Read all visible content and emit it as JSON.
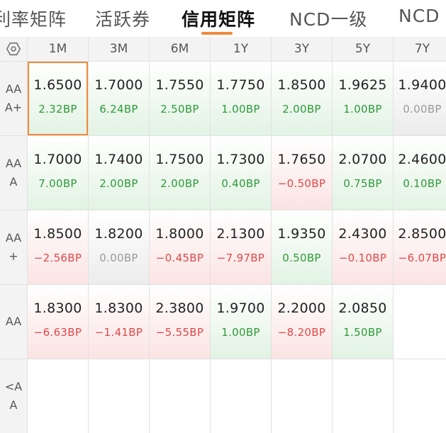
{
  "colors": {
    "accent": "#f08a3c",
    "up": "#2e9a3a",
    "down": "#e04848",
    "flat": "#9a9a9a"
  },
  "tabs": [
    {
      "label": "利率矩阵",
      "active": false
    },
    {
      "label": "活跃券",
      "active": false
    },
    {
      "label": "信用矩阵",
      "active": true
    },
    {
      "label": "NCD一级",
      "active": false
    },
    {
      "label": "NCD",
      "active": false
    }
  ],
  "corner_icon": "hexagon-settings-icon",
  "columns": [
    "1M",
    "3M",
    "6M",
    "1Y",
    "3Y",
    "5Y",
    "7Y"
  ],
  "rows": [
    {
      "label": "AAA+",
      "cells": [
        {
          "v": "1.6500",
          "c": "2.32BP",
          "t": "up",
          "selected": true
        },
        {
          "v": "1.7000",
          "c": "6.24BP",
          "t": "up"
        },
        {
          "v": "1.7550",
          "c": "2.50BP",
          "t": "up"
        },
        {
          "v": "1.7750",
          "c": "1.00BP",
          "t": "up"
        },
        {
          "v": "1.8500",
          "c": "2.00BP",
          "t": "up"
        },
        {
          "v": "1.9625",
          "c": "1.00BP",
          "t": "up"
        },
        {
          "v": "1.9400",
          "c": "0.00BP",
          "t": "flat"
        }
      ]
    },
    {
      "label": "AAA",
      "cells": [
        {
          "v": "1.7000",
          "c": "7.00BP",
          "t": "up"
        },
        {
          "v": "1.7400",
          "c": "2.00BP",
          "t": "up"
        },
        {
          "v": "1.7500",
          "c": "2.00BP",
          "t": "up"
        },
        {
          "v": "1.7300",
          "c": "0.40BP",
          "t": "up"
        },
        {
          "v": "1.7650",
          "c": "−0.50BP",
          "t": "down"
        },
        {
          "v": "2.0700",
          "c": "0.75BP",
          "t": "up"
        },
        {
          "v": "2.4600",
          "c": "0.10BP",
          "t": "up"
        }
      ]
    },
    {
      "label": "AA+",
      "cells": [
        {
          "v": "1.8500",
          "c": "−2.56BP",
          "t": "down"
        },
        {
          "v": "1.8200",
          "c": "0.00BP",
          "t": "flat"
        },
        {
          "v": "1.8000",
          "c": "−0.45BP",
          "t": "down"
        },
        {
          "v": "2.1300",
          "c": "−7.97BP",
          "t": "down"
        },
        {
          "v": "1.9350",
          "c": "0.50BP",
          "t": "up"
        },
        {
          "v": "2.4300",
          "c": "−0.10BP",
          "t": "down"
        },
        {
          "v": "2.8500",
          "c": "−6.07BP",
          "t": "down"
        }
      ]
    },
    {
      "label": "AA",
      "cells": [
        {
          "v": "1.8300",
          "c": "−6.63BP",
          "t": "down"
        },
        {
          "v": "1.8300",
          "c": "−1.41BP",
          "t": "down"
        },
        {
          "v": "2.3800",
          "c": "−5.55BP",
          "t": "down"
        },
        {
          "v": "1.9700",
          "c": "1.00BP",
          "t": "up"
        },
        {
          "v": "2.2000",
          "c": "−8.20BP",
          "t": "down"
        },
        {
          "v": "2.0850",
          "c": "1.50BP",
          "t": "up"
        },
        {
          "v": "",
          "c": "",
          "t": "none"
        }
      ]
    },
    {
      "label": "<AA",
      "cells": [
        {
          "v": "",
          "c": "",
          "t": "none"
        },
        {
          "v": "",
          "c": "",
          "t": "none"
        },
        {
          "v": "",
          "c": "",
          "t": "none"
        },
        {
          "v": "",
          "c": "",
          "t": "none"
        },
        {
          "v": "",
          "c": "",
          "t": "none"
        },
        {
          "v": "",
          "c": "",
          "t": "none"
        },
        {
          "v": "",
          "c": "",
          "t": "none"
        }
      ]
    }
  ]
}
